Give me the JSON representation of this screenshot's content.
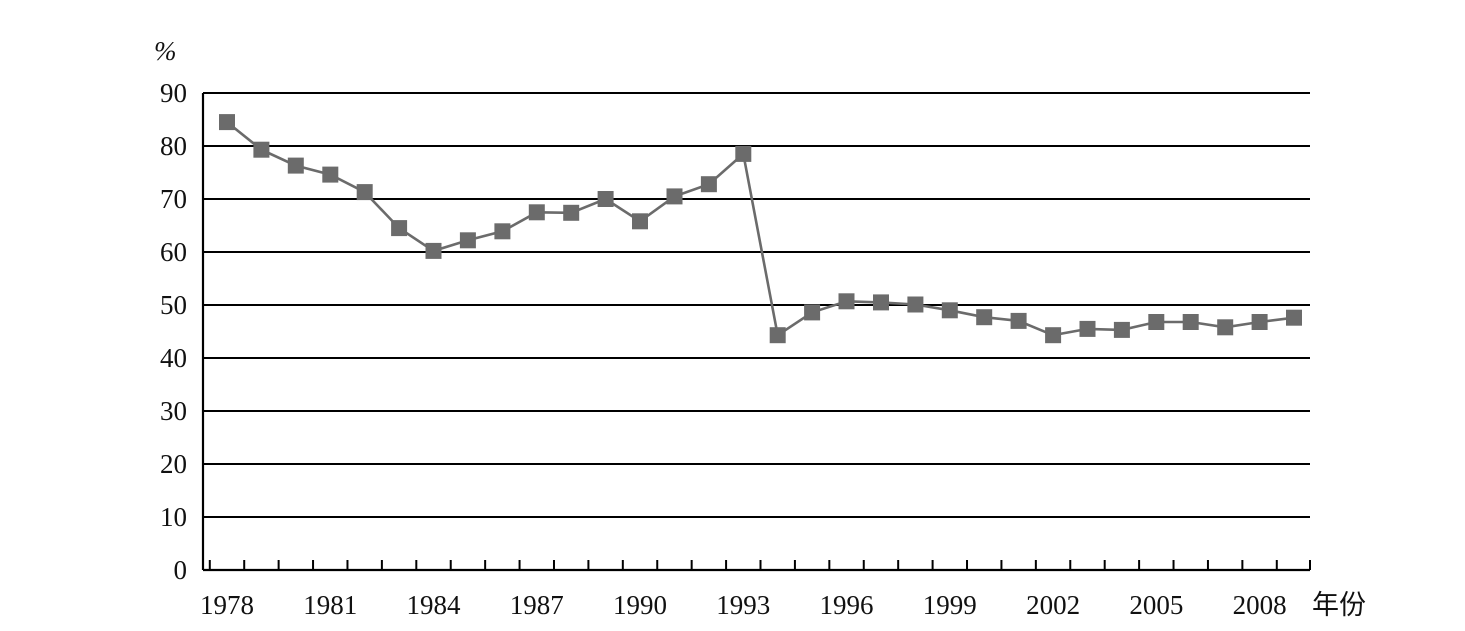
{
  "chart_data": {
    "type": "line",
    "title": "",
    "xlabel": "年份",
    "ylabel": "%",
    "ylim": [
      0,
      90
    ],
    "xlim": [
      1978,
      2009
    ],
    "y_ticks": [
      0,
      10,
      20,
      30,
      40,
      50,
      60,
      70,
      80,
      90
    ],
    "x_tick_labels": [
      "1978",
      "1981",
      "1984",
      "1987",
      "1990",
      "1993",
      "1996",
      "1999",
      "2002",
      "2005",
      "2008"
    ],
    "grid": "horizontal",
    "legend": "none",
    "colors": {
      "series": "#6b6b6b",
      "axis": "#000000"
    },
    "x": [
      1978,
      1979,
      1980,
      1981,
      1982,
      1983,
      1984,
      1985,
      1986,
      1987,
      1988,
      1989,
      1990,
      1991,
      1992,
      1993,
      1994,
      1995,
      1996,
      1997,
      1998,
      1999,
      2000,
      2001,
      2002,
      2003,
      2004,
      2005,
      2006,
      2007,
      2008,
      2009
    ],
    "series": [
      {
        "marker": "square",
        "values": [
          84.5,
          79.3,
          76.3,
          74.6,
          71.3,
          64.5,
          60.2,
          62.2,
          63.9,
          67.5,
          67.4,
          70.0,
          65.8,
          70.5,
          72.8,
          78.5,
          44.3,
          48.6,
          50.7,
          50.5,
          50.1,
          49.0,
          47.7,
          47.0,
          44.3,
          45.5,
          45.3,
          46.8,
          46.8,
          45.8,
          46.8,
          47.6
        ]
      }
    ]
  }
}
